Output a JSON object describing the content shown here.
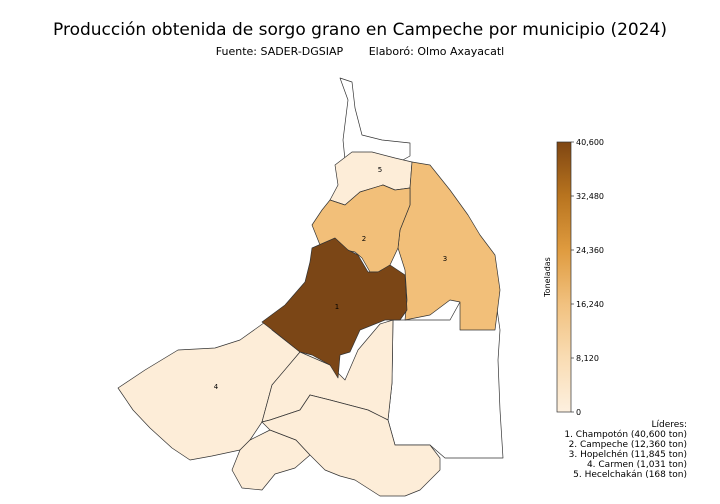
{
  "title": "Producción obtenida de sorgo grano en Campeche por municipio (2024)",
  "source": "Fuente: SADER-DGSIAP",
  "author": "Elaboró: Olmo Axayacatl",
  "colorbar": {
    "label": "Toneladas",
    "ticks": [
      "40,600",
      "32,480",
      "24,360",
      "16,240",
      "8,120",
      "0"
    ],
    "colors": [
      "#fdf0df",
      "#f9dcb3",
      "#f1c17f",
      "#df9b3f",
      "#b8741f",
      "#7f4612"
    ]
  },
  "leaders": {
    "heading": "Líderes:",
    "items": [
      "1. Champotón (40,600 ton)",
      "2. Campeche (12,360 ton)",
      "3. Hopelchén (11,845 ton)",
      "4. Carmen (1,031 ton)",
      "5. Hecelchakán (168 ton)"
    ]
  },
  "regions": [
    {
      "rank": "1",
      "name": "Champotón",
      "value": 40600,
      "color": "#7b4616"
    },
    {
      "rank": "2",
      "name": "Campeche",
      "value": 12360,
      "color": "#f2bf79"
    },
    {
      "rank": "3",
      "name": "Hopelchén",
      "value": 11845,
      "color": "#f2bf79"
    },
    {
      "rank": "4",
      "name": "Carmen",
      "value": 1031,
      "color": "#fdedd8"
    },
    {
      "rank": "5",
      "name": "Hecelchakán",
      "value": 168,
      "color": "#fdedd8"
    }
  ]
}
